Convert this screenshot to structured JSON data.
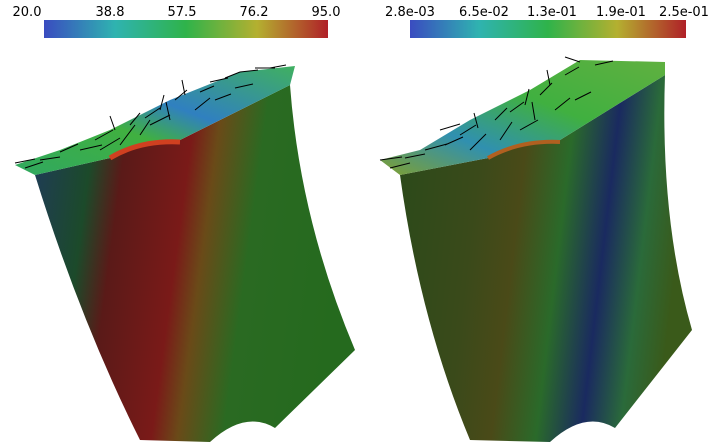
{
  "panels": [
    {
      "colorbar": {
        "labels": [
          "20.0",
          "38.8",
          "57.5",
          "76.2",
          "95.0"
        ]
      }
    },
    {
      "colorbar": {
        "labels": [
          "2.8e-03",
          "6.5e-02",
          "1.3e-01",
          "1.9e-01",
          "2.5e-01"
        ]
      }
    }
  ]
}
